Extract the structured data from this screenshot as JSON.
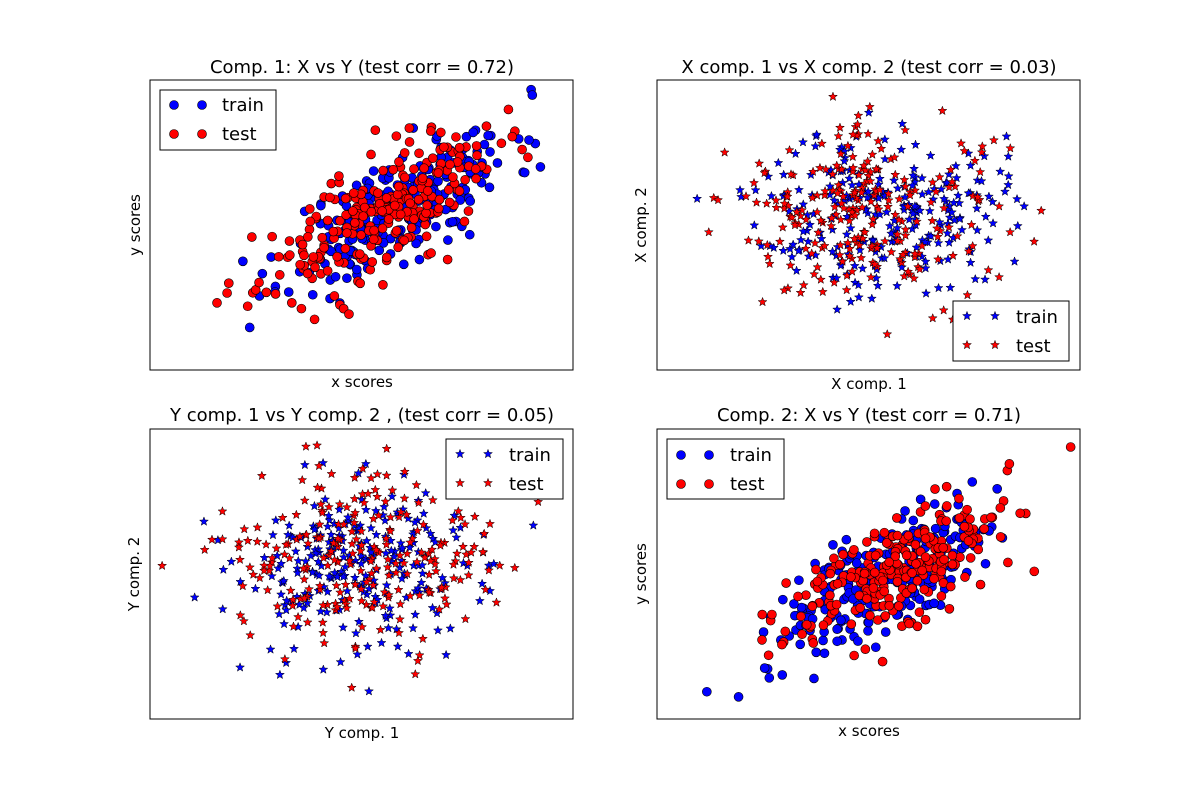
{
  "figure": {
    "background": "#ffffff",
    "train_color": "#0000ff",
    "test_color": "#ff0000"
  },
  "chart_data": [
    {
      "type": "scatter",
      "title": "Comp. 1: X vs Y (test corr = 0.72)",
      "xlabel": "x scores",
      "ylabel": "y scores",
      "marker": "circle",
      "legend": {
        "location": "top-left",
        "entries": [
          "train",
          "test"
        ]
      },
      "xlim": [
        -3.2,
        3.2
      ],
      "ylim": [
        -3.2,
        3.2
      ],
      "correlation": 0.72,
      "series": [
        {
          "name": "train",
          "color": "#0000ff",
          "n": 250,
          "mean": [
            0.6,
            0.4
          ],
          "sd": [
            0.85,
            0.85
          ],
          "corr": 0.72,
          "seed": 11
        },
        {
          "name": "test",
          "color": "#ff0000",
          "n": 250,
          "mean": [
            0.25,
            0.2
          ],
          "sd": [
            0.9,
            0.9
          ],
          "corr": 0.72,
          "seed": 23
        }
      ]
    },
    {
      "type": "scatter",
      "title": "X comp. 1 vs X comp. 2 (test corr = 0.03)",
      "xlabel": "X comp. 1",
      "ylabel": "X comp. 2",
      "marker": "star",
      "legend": {
        "location": "bottom-right",
        "entries": [
          "train",
          "test"
        ]
      },
      "xlim": [
        -3.2,
        3.2
      ],
      "ylim": [
        -3.2,
        3.2
      ],
      "correlation": 0.03,
      "series": [
        {
          "name": "train",
          "color": "#0000ff",
          "n": 250,
          "mean": [
            0.2,
            0.3
          ],
          "sd": [
            0.9,
            0.9
          ],
          "corr": 0.03,
          "seed": 37
        },
        {
          "name": "test",
          "color": "#ff0000",
          "n": 250,
          "mean": [
            0.0,
            0.3
          ],
          "sd": [
            1.0,
            0.95
          ],
          "corr": 0.03,
          "seed": 41
        }
      ]
    },
    {
      "type": "scatter",
      "title": "Y comp. 1 vs Y comp. 2 , (test corr = 0.05)",
      "xlabel": "Y comp. 1",
      "ylabel": "Y comp. 2",
      "marker": "star",
      "legend": {
        "location": "top-right",
        "entries": [
          "train",
          "test"
        ]
      },
      "xlim": [
        -3.2,
        3.2
      ],
      "ylim": [
        -3.2,
        3.2
      ],
      "correlation": 0.05,
      "series": [
        {
          "name": "train",
          "color": "#0000ff",
          "n": 250,
          "mean": [
            0.0,
            0.1
          ],
          "sd": [
            0.95,
            0.95
          ],
          "corr": 0.05,
          "seed": 53
        },
        {
          "name": "test",
          "color": "#ff0000",
          "n": 250,
          "mean": [
            -0.1,
            0.2
          ],
          "sd": [
            1.0,
            1.0
          ],
          "corr": 0.05,
          "seed": 67
        }
      ]
    },
    {
      "type": "scatter",
      "title": "Comp. 2: X vs Y (test corr = 0.71)",
      "xlabel": "x scores",
      "ylabel": "y scores",
      "marker": "circle",
      "legend": {
        "location": "top-left",
        "entries": [
          "train",
          "test"
        ]
      },
      "xlim": [
        -3.2,
        3.2
      ],
      "ylim": [
        -3.2,
        3.2
      ],
      "correlation": 0.71,
      "series": [
        {
          "name": "train",
          "color": "#0000ff",
          "n": 250,
          "mean": [
            0.2,
            -0.1
          ],
          "sd": [
            0.85,
            0.85
          ],
          "corr": 0.71,
          "seed": 79
        },
        {
          "name": "test",
          "color": "#ff0000",
          "n": 250,
          "mean": [
            0.3,
            0.0
          ],
          "sd": [
            0.9,
            0.9
          ],
          "corr": 0.71,
          "seed": 97
        }
      ]
    }
  ]
}
